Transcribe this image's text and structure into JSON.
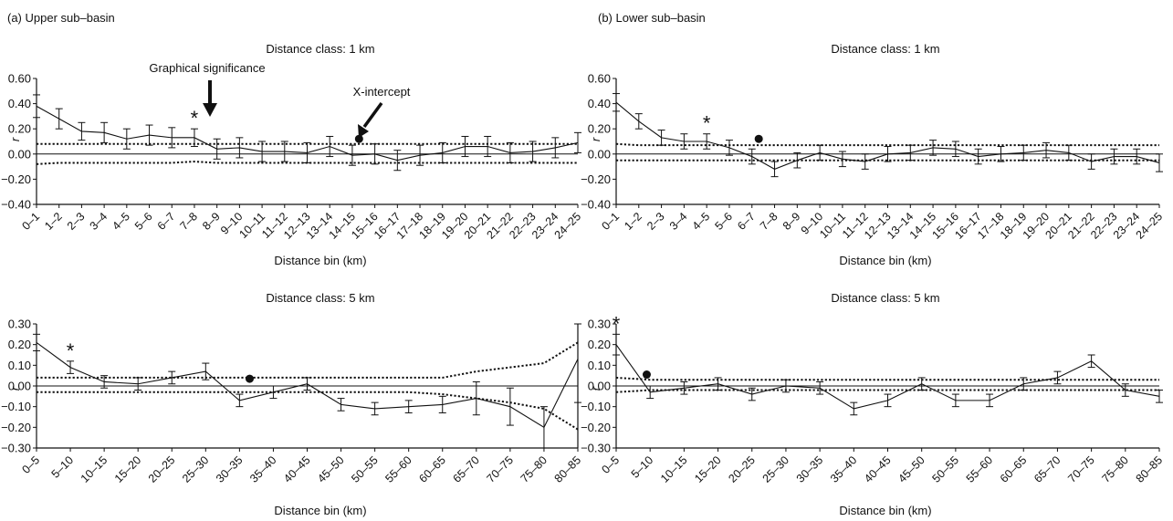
{
  "figure": {
    "panel_a_label": "(a) Upper sub–basin",
    "panel_b_label": "(b) Lower sub–basin",
    "annotation_graphical": "Graphical significance",
    "annotation_xintercept": "X-intercept"
  },
  "colors": {
    "ink": "#111111",
    "background": "#ffffff"
  },
  "chart_data": [
    {
      "id": "a1",
      "type": "line",
      "panel": "(a) Upper sub–basin",
      "title": "Distance class: 1 km",
      "xlabel": "Distance bin (km)",
      "ylabel": "r",
      "ylim": [
        -0.4,
        0.6
      ],
      "yticks": [
        -0.4,
        -0.2,
        0.0,
        0.2,
        0.4,
        0.6
      ],
      "ytick_labels": [
        "−0.40",
        "−0.20",
        "0.00",
        "0.20",
        "0.40",
        "0.60"
      ],
      "categories": [
        "0–1",
        "1–2",
        "2–3",
        "3–4",
        "4–5",
        "5–6",
        "6–7",
        "7–8",
        "8–9",
        "9–10",
        "10–11",
        "11–12",
        "12–13",
        "13–14",
        "14–15",
        "15–16",
        "16–17",
        "17–18",
        "18–19",
        "19–20",
        "20–21",
        "21–22",
        "22–23",
        "23–24",
        "24–25"
      ],
      "values": [
        0.38,
        0.28,
        0.18,
        0.17,
        0.12,
        0.15,
        0.13,
        0.13,
        0.04,
        0.05,
        0.02,
        0.02,
        0.01,
        0.06,
        -0.01,
        0.0,
        -0.05,
        -0.01,
        0.01,
        0.06,
        0.06,
        0.01,
        0.02,
        0.05,
        0.09
      ],
      "err": [
        0.09,
        0.08,
        0.07,
        0.08,
        0.08,
        0.08,
        0.08,
        0.07,
        0.08,
        0.08,
        0.08,
        0.08,
        0.08,
        0.08,
        0.08,
        0.08,
        0.08,
        0.08,
        0.08,
        0.08,
        0.08,
        0.08,
        0.08,
        0.08,
        0.08
      ],
      "ci_upper": [
        0.08,
        0.08,
        0.08,
        0.08,
        0.08,
        0.08,
        0.08,
        0.08,
        0.08,
        0.08,
        0.08,
        0.08,
        0.08,
        0.08,
        0.08,
        0.08,
        0.08,
        0.08,
        0.08,
        0.08,
        0.08,
        0.08,
        0.08,
        0.08,
        0.08
      ],
      "ci_lower": [
        -0.08,
        -0.07,
        -0.07,
        -0.07,
        -0.07,
        -0.07,
        -0.07,
        -0.06,
        -0.07,
        -0.07,
        -0.07,
        -0.07,
        -0.07,
        -0.07,
        -0.07,
        -0.07,
        -0.07,
        -0.07,
        -0.07,
        -0.07,
        -0.07,
        -0.07,
        -0.07,
        -0.07,
        -0.07
      ],
      "significance_index": 7,
      "significance_marker": "*",
      "x_intercept": {
        "x": 14.3,
        "y": 0.12
      }
    },
    {
      "id": "b1",
      "type": "line",
      "panel": "(b) Lower sub–basin",
      "title": "Distance class: 1 km",
      "xlabel": "Distance bin (km)",
      "ylabel": "r",
      "ylim": [
        -0.4,
        0.6
      ],
      "yticks": [
        -0.4,
        -0.2,
        0.0,
        0.2,
        0.4,
        0.6
      ],
      "ytick_labels": [
        "−0.40",
        "−0.20",
        "0.00",
        "0.20",
        "0.40",
        "0.60"
      ],
      "categories": [
        "0–1",
        "1–2",
        "2–3",
        "3–4",
        "4–5",
        "5–6",
        "6–7",
        "7–8",
        "8–9",
        "9–10",
        "10–11",
        "11–12",
        "12–13",
        "13–14",
        "14–15",
        "15–16",
        "16–17",
        "17–18",
        "18–19",
        "19–20",
        "20–21",
        "21–22",
        "22–23",
        "23–24",
        "24–25"
      ],
      "values": [
        0.41,
        0.26,
        0.13,
        0.1,
        0.1,
        0.05,
        -0.02,
        -0.12,
        -0.05,
        0.01,
        -0.04,
        -0.06,
        0.0,
        0.01,
        0.05,
        0.04,
        -0.02,
        0.0,
        0.01,
        0.03,
        0.01,
        -0.06,
        -0.02,
        -0.02,
        -0.07
      ],
      "err": [
        0.07,
        0.06,
        0.06,
        0.06,
        0.06,
        0.06,
        0.06,
        0.06,
        0.06,
        0.06,
        0.06,
        0.06,
        0.06,
        0.06,
        0.06,
        0.06,
        0.06,
        0.06,
        0.06,
        0.06,
        0.06,
        0.06,
        0.06,
        0.06,
        0.07
      ],
      "ci_upper": [
        0.08,
        0.07,
        0.07,
        0.07,
        0.07,
        0.07,
        0.07,
        0.07,
        0.07,
        0.07,
        0.07,
        0.07,
        0.07,
        0.07,
        0.07,
        0.07,
        0.07,
        0.07,
        0.07,
        0.07,
        0.07,
        0.07,
        0.07,
        0.07,
        0.07
      ],
      "ci_lower": [
        -0.05,
        -0.05,
        -0.05,
        -0.05,
        -0.05,
        -0.05,
        -0.05,
        -0.05,
        -0.05,
        -0.05,
        -0.05,
        -0.05,
        -0.05,
        -0.05,
        -0.05,
        -0.05,
        -0.05,
        -0.05,
        -0.05,
        -0.05,
        -0.05,
        -0.05,
        -0.05,
        -0.05,
        -0.05
      ],
      "significance_index": 4,
      "significance_marker": "*",
      "x_intercept": {
        "x": 6.3,
        "y": 0.12
      }
    },
    {
      "id": "a5",
      "type": "line",
      "panel": "(a) Upper sub–basin",
      "title": "",
      "xlabel": "Distance bin (km)",
      "ylabel": "r",
      "ylim": [
        -0.3,
        0.3
      ],
      "yticks": [
        -0.3,
        -0.2,
        -0.1,
        0.0,
        0.1,
        0.2,
        0.3
      ],
      "ytick_labels": [
        "−0.30",
        "−0.20",
        "−0.10",
        "0.00",
        "0.10",
        "0.20",
        "0.30"
      ],
      "categories": [
        "0–5",
        "5–10",
        "10–15",
        "15–20",
        "20–25",
        "25–30",
        "30–35",
        "35–40",
        "40–45",
        "45–50",
        "50–55",
        "55–60",
        "60–65",
        "65–70",
        "70–75",
        "75–80",
        "80–85"
      ],
      "values": [
        0.21,
        0.09,
        0.02,
        0.01,
        0.04,
        0.07,
        -0.07,
        -0.03,
        0.01,
        -0.09,
        -0.11,
        -0.1,
        -0.09,
        -0.06,
        -0.1,
        -0.2,
        0.13
      ],
      "err": [
        0.04,
        0.03,
        0.03,
        0.03,
        0.03,
        0.04,
        0.03,
        0.03,
        0.03,
        0.03,
        0.03,
        0.03,
        0.04,
        0.08,
        0.09,
        0.1,
        0.21
      ],
      "ci_upper": [
        0.04,
        0.04,
        0.04,
        0.04,
        0.04,
        0.04,
        0.04,
        0.04,
        0.04,
        0.04,
        0.04,
        0.04,
        0.04,
        0.07,
        0.09,
        0.11,
        0.21
      ],
      "ci_lower": [
        -0.03,
        -0.03,
        -0.03,
        -0.03,
        -0.03,
        -0.03,
        -0.03,
        -0.03,
        -0.03,
        -0.03,
        -0.03,
        -0.03,
        -0.04,
        -0.06,
        -0.08,
        -0.11,
        -0.21
      ],
      "significance_index": 1,
      "significance_marker": "*",
      "x_intercept": {
        "x": 6.3,
        "y": 0.035
      }
    },
    {
      "id": "b5",
      "type": "line",
      "panel": "(b) Lower sub–basin",
      "title": "",
      "xlabel": "Distance bin (km)",
      "ylabel": "r",
      "ylim": [
        -0.3,
        0.3
      ],
      "yticks": [
        -0.3,
        -0.2,
        -0.1,
        0.0,
        0.1,
        0.2,
        0.3
      ],
      "ytick_labels": [
        "−0.30",
        "−0.20",
        "−0.10",
        "0.00",
        "0.10",
        "0.20",
        "0.30"
      ],
      "categories": [
        "0–5",
        "5–10",
        "10–15",
        "15–20",
        "20–25",
        "25–30",
        "30–35",
        "35–40",
        "40–45",
        "45–50",
        "50–55",
        "55–60",
        "60–65",
        "65–70",
        "70–75",
        "75–80",
        "80–85"
      ],
      "values": [
        0.2,
        -0.03,
        -0.01,
        0.01,
        -0.04,
        0.0,
        -0.01,
        -0.11,
        -0.07,
        0.01,
        -0.07,
        -0.07,
        0.01,
        0.04,
        0.12,
        -0.02,
        -0.05
      ],
      "err": [
        0.05,
        0.03,
        0.03,
        0.03,
        0.03,
        0.03,
        0.03,
        0.03,
        0.03,
        0.03,
        0.03,
        0.03,
        0.03,
        0.03,
        0.03,
        0.03,
        0.03
      ],
      "ci_upper": [
        0.04,
        0.03,
        0.03,
        0.03,
        0.03,
        0.03,
        0.03,
        0.03,
        0.03,
        0.03,
        0.03,
        0.03,
        0.03,
        0.03,
        0.03,
        0.03,
        0.03
      ],
      "ci_lower": [
        -0.03,
        -0.02,
        -0.02,
        -0.02,
        -0.02,
        -0.02,
        -0.02,
        -0.02,
        -0.02,
        -0.02,
        -0.02,
        -0.02,
        -0.02,
        -0.02,
        -0.02,
        -0.02,
        -0.02
      ],
      "significance_index": 0,
      "significance_marker": "*",
      "x_intercept": {
        "x": 0.9,
        "y": 0.055
      }
    }
  ],
  "panel_titles": {
    "a5": "Distance class: 5 km",
    "b5": "Distance class: 5 km"
  }
}
